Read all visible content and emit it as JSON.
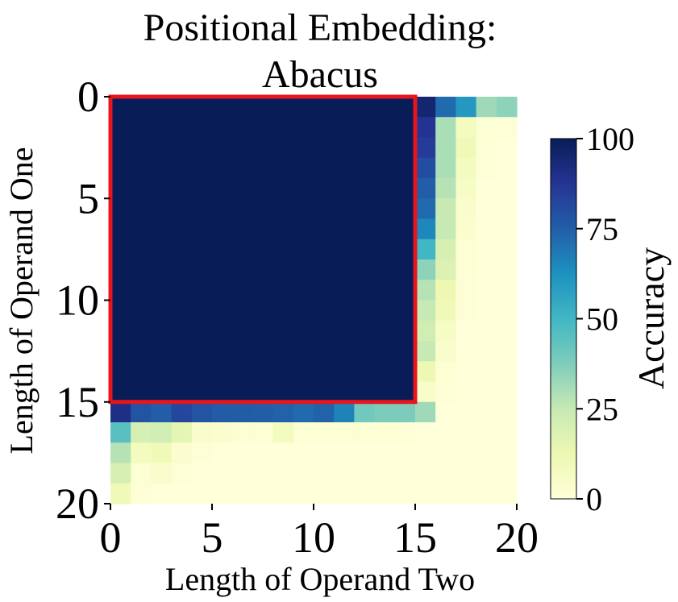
{
  "chart_data": {
    "type": "heatmap",
    "title_lines": [
      "Positional Embedding:",
      "Abacus"
    ],
    "xlabel": "Length of Operand Two",
    "ylabel": "Length of Operand One",
    "x_ticks": [
      "0",
      "5",
      "10",
      "15",
      "20"
    ],
    "y_ticks": [
      "0",
      "5",
      "10",
      "15",
      "20"
    ],
    "xlim": [
      0,
      20
    ],
    "ylim": [
      0,
      20
    ],
    "colorbar": {
      "label": "Accuracy",
      "ticks": [
        "0",
        "25",
        "50",
        "75",
        "100"
      ],
      "range": [
        0,
        100
      ],
      "colormap": "YlGnBu"
    },
    "highlight_box": {
      "x": [
        0,
        15
      ],
      "y": [
        0,
        15
      ],
      "color": "#e8141e"
    },
    "grid_default_value": 0,
    "values": [
      [
        100,
        100,
        100,
        100,
        100,
        100,
        100,
        100,
        100,
        100,
        100,
        100,
        100,
        100,
        100,
        95,
        72,
        60,
        32,
        35
      ],
      [
        100,
        100,
        100,
        100,
        100,
        100,
        100,
        100,
        100,
        100,
        100,
        100,
        100,
        100,
        100,
        88,
        30,
        8,
        2,
        1
      ],
      [
        100,
        100,
        100,
        100,
        100,
        100,
        100,
        100,
        100,
        100,
        100,
        100,
        100,
        100,
        100,
        85,
        30,
        10,
        1,
        0
      ],
      [
        100,
        100,
        100,
        100,
        100,
        100,
        100,
        100,
        100,
        100,
        100,
        100,
        100,
        100,
        100,
        80,
        30,
        8,
        1,
        0
      ],
      [
        100,
        100,
        100,
        100,
        100,
        100,
        100,
        100,
        100,
        100,
        100,
        100,
        100,
        100,
        100,
        75,
        28,
        6,
        0,
        0
      ],
      [
        100,
        100,
        100,
        100,
        100,
        100,
        100,
        100,
        100,
        100,
        100,
        100,
        100,
        100,
        100,
        72,
        25,
        4,
        0,
        0
      ],
      [
        100,
        100,
        100,
        100,
        100,
        100,
        100,
        100,
        100,
        100,
        100,
        100,
        100,
        100,
        100,
        65,
        25,
        3,
        0,
        0
      ],
      [
        100,
        100,
        100,
        100,
        100,
        100,
        100,
        100,
        100,
        100,
        100,
        100,
        100,
        100,
        100,
        50,
        20,
        2,
        0,
        0
      ],
      [
        100,
        100,
        100,
        100,
        100,
        100,
        100,
        100,
        100,
        100,
        100,
        100,
        100,
        100,
        100,
        35,
        18,
        2,
        0,
        0
      ],
      [
        100,
        100,
        100,
        100,
        100,
        100,
        100,
        100,
        100,
        100,
        100,
        100,
        100,
        100,
        100,
        28,
        12,
        1,
        0,
        0
      ],
      [
        100,
        100,
        100,
        100,
        100,
        100,
        100,
        100,
        100,
        100,
        100,
        100,
        100,
        100,
        100,
        25,
        10,
        1,
        0,
        0
      ],
      [
        100,
        100,
        100,
        100,
        100,
        100,
        100,
        100,
        100,
        100,
        100,
        100,
        100,
        100,
        100,
        22,
        6,
        0,
        0,
        0
      ],
      [
        100,
        100,
        100,
        100,
        100,
        100,
        100,
        100,
        100,
        100,
        100,
        100,
        100,
        100,
        100,
        25,
        4,
        0,
        0,
        0
      ],
      [
        100,
        100,
        100,
        100,
        100,
        100,
        100,
        100,
        100,
        100,
        100,
        100,
        100,
        100,
        100,
        12,
        2,
        0,
        0,
        0
      ],
      [
        100,
        100,
        100,
        100,
        100,
        100,
        100,
        100,
        100,
        100,
        100,
        100,
        100,
        100,
        100,
        5,
        1,
        0,
        0,
        0
      ],
      [
        90,
        78,
        75,
        82,
        78,
        76,
        76,
        75,
        74,
        72,
        74,
        66,
        40,
        38,
        38,
        32,
        0,
        0,
        0,
        0
      ],
      [
        45,
        20,
        22,
        15,
        4,
        3,
        2,
        2,
        8,
        2,
        2,
        2,
        2,
        2,
        1,
        0,
        0,
        0,
        0,
        0
      ],
      [
        28,
        8,
        10,
        3,
        1,
        0,
        0,
        0,
        0,
        0,
        0,
        0,
        0,
        0,
        0,
        0,
        0,
        0,
        0,
        0
      ],
      [
        20,
        2,
        4,
        1,
        0,
        0,
        0,
        0,
        0,
        0,
        0,
        0,
        0,
        0,
        0,
        0,
        0,
        0,
        0,
        0
      ],
      [
        10,
        1,
        0,
        0,
        0,
        0,
        0,
        0,
        0,
        0,
        0,
        0,
        0,
        0,
        0,
        0,
        0,
        0,
        0,
        0
      ]
    ]
  }
}
